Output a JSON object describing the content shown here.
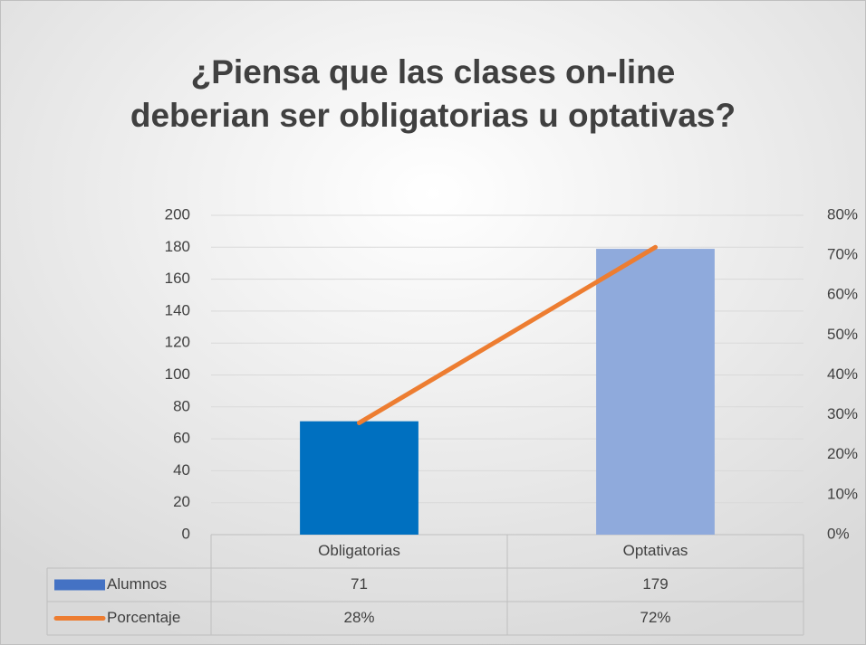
{
  "chart_data": {
    "type": "bar-line",
    "title": [
      "¿Piensa que las clases on-line",
      "deberian ser obligatorias u optativas?"
    ],
    "categories": [
      "Obligatorias",
      "Optativas"
    ],
    "series": [
      {
        "name": "Alumnos",
        "type": "bar",
        "color": "#4472c4",
        "point_colors": [
          "#0070c0",
          "#8faadc"
        ],
        "values": [
          71,
          179
        ]
      },
      {
        "name": "Porcentaje",
        "type": "line",
        "axis": "y2",
        "color": "#ed7d31",
        "values": [
          28,
          72
        ],
        "value_labels": [
          "28%",
          "72%"
        ]
      }
    ],
    "ylim": [
      0,
      200
    ],
    "yticks": [
      0,
      20,
      40,
      60,
      80,
      100,
      120,
      140,
      160,
      180,
      200
    ],
    "y2lim": [
      0,
      80
    ],
    "y2ticks": [
      {
        "value": 0,
        "label": "0%"
      },
      {
        "value": 10,
        "label": "10%"
      },
      {
        "value": 20,
        "label": "20%"
      },
      {
        "value": 30,
        "label": "30%"
      },
      {
        "value": 40,
        "label": "40%"
      },
      {
        "value": 50,
        "label": "50%"
      },
      {
        "value": 60,
        "label": "60%"
      },
      {
        "value": 70,
        "label": "70%"
      },
      {
        "value": 80,
        "label": "80%"
      }
    ],
    "grid": true,
    "data_table": true
  }
}
